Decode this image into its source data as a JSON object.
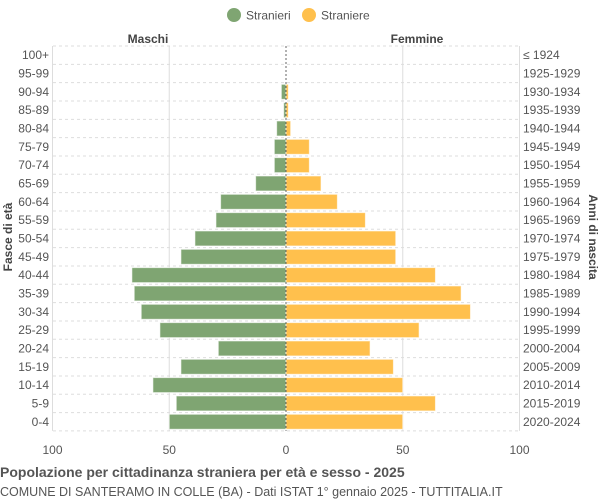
{
  "chart_data": {
    "type": "bar",
    "orientation": "horizontal-pyramid",
    "title": "Popolazione per cittadinanza straniera per età e sesso - 2025",
    "subtitle": "COMUNE DI SANTERAMO IN COLLE (BA) - Dati ISTAT 1° gennaio 2025 - TUTTITALIA.IT",
    "left_header": "Maschi",
    "right_header": "Femmine",
    "ylabel_left": "Fasce di età",
    "ylabel_right": "Anni di nascita",
    "legend": [
      {
        "name": "Stranieri",
        "color": "#7fa572"
      },
      {
        "name": "Straniere",
        "color": "#ffc04d"
      }
    ],
    "legend_position": "top-center",
    "xlim": [
      -100,
      100
    ],
    "xticks": [
      "100",
      "50",
      "0",
      "50",
      "100"
    ],
    "categories": [
      "100+",
      "95-99",
      "90-94",
      "85-89",
      "80-84",
      "75-79",
      "70-74",
      "65-69",
      "60-64",
      "55-59",
      "50-54",
      "45-49",
      "40-44",
      "35-39",
      "30-34",
      "25-29",
      "20-24",
      "15-19",
      "10-14",
      "5-9",
      "0-4"
    ],
    "birth_years": [
      "≤ 1924",
      "1925-1929",
      "1930-1934",
      "1935-1939",
      "1940-1944",
      "1945-1949",
      "1950-1954",
      "1955-1959",
      "1960-1964",
      "1965-1969",
      "1970-1974",
      "1975-1979",
      "1980-1984",
      "1985-1989",
      "1990-1994",
      "1995-1999",
      "2000-2004",
      "2005-2009",
      "2010-2014",
      "2015-2019",
      "2020-2024"
    ],
    "series": [
      {
        "name": "Stranieri",
        "values": [
          0,
          0,
          2,
          1,
          4,
          5,
          5,
          13,
          28,
          30,
          39,
          45,
          66,
          65,
          62,
          54,
          29,
          45,
          57,
          47,
          50
        ]
      },
      {
        "name": "Straniere",
        "values": [
          0,
          0,
          1,
          1,
          2,
          10,
          10,
          15,
          22,
          34,
          47,
          47,
          64,
          75,
          79,
          57,
          36,
          46,
          50,
          64,
          50
        ]
      }
    ],
    "grid": true
  }
}
